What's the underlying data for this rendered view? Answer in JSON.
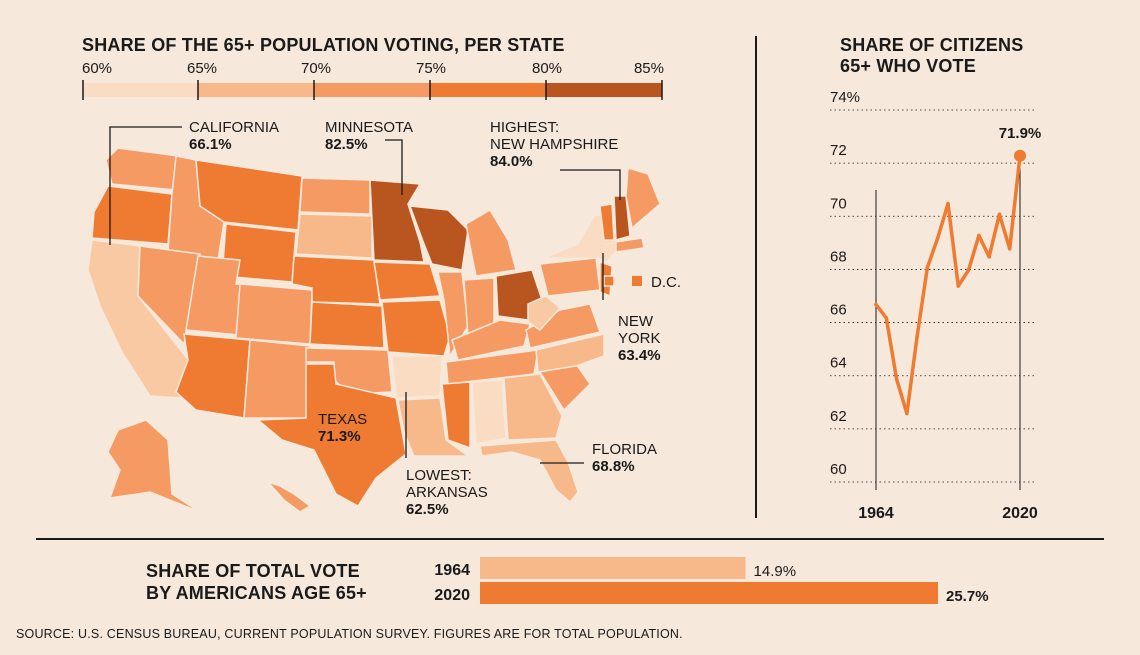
{
  "map": {
    "title": "SHARE OF THE 65+ POPULATION VOTING, PER STATE",
    "scale_labels": [
      "60%",
      "65%",
      "70%",
      "75%",
      "80%",
      "85%"
    ],
    "scale_colors": [
      "#f9dcc2",
      "#f7b88a",
      "#f49a62",
      "#ef7a31",
      "#b9551e"
    ],
    "annotations": {
      "california": {
        "name": "CALIFORNIA",
        "value": "66.1%"
      },
      "minnesota": {
        "name": "MINNESOTA",
        "value": "82.5%"
      },
      "new_hampshire": {
        "prefix": "HIGHEST:",
        "name": "NEW HAMPSHIRE",
        "value": "84.0%"
      },
      "dc": {
        "name": "D.C."
      },
      "new_york": {
        "name1": "NEW",
        "name2": "YORK",
        "value": "63.4%"
      },
      "texas": {
        "name": "TEXAS",
        "value": "71.3%"
      },
      "florida": {
        "name": "FLORIDA",
        "value": "68.8%"
      },
      "arkansas": {
        "prefix": "LOWEST:",
        "name": "ARKANSAS",
        "value": "62.5%"
      }
    }
  },
  "line": {
    "title_line1": "SHARE OF CITIZENS",
    "title_line2": "65+ WHO VOTE",
    "y_labels": [
      "74%",
      "72",
      "70",
      "68",
      "66",
      "64",
      "62",
      "60"
    ],
    "x_start": "1964",
    "x_end": "2020",
    "end_label": "71.9%"
  },
  "bars": {
    "title_line1": "SHARE OF TOTAL VOTE",
    "title_line2": "BY AMERICANS AGE 65+",
    "rows": [
      {
        "year": "1964",
        "value_label": "14.9%"
      },
      {
        "year": "2020",
        "value_label": "25.7%"
      }
    ]
  },
  "source": "SOURCE: U.S. CENSUS BUREAU, CURRENT POPULATION SURVEY. FIGURES ARE FOR TOTAL POPULATION.",
  "chart_data": [
    {
      "type": "line",
      "title": "SHARE OF CITIZENS 65+ WHO VOTE",
      "x": [
        1964,
        1968,
        1972,
        1976,
        1980,
        1984,
        1988,
        1992,
        1996,
        2000,
        2004,
        2008,
        2012,
        2016,
        2020
      ],
      "values": [
        66.3,
        65.8,
        63.5,
        62.2,
        65.1,
        67.7,
        68.8,
        70.1,
        67.0,
        67.6,
        68.9,
        68.1,
        69.7,
        68.4,
        71.9
      ],
      "xlabel": "",
      "ylabel": "",
      "ylim": [
        60,
        74
      ],
      "x_tick_labels": [
        "1964",
        "2020"
      ],
      "y_tick_labels": [
        "74%",
        "72",
        "70",
        "68",
        "66",
        "64",
        "62",
        "60"
      ],
      "end_label": "71.9%",
      "grid": true
    },
    {
      "type": "bar",
      "title": "SHARE OF TOTAL VOTE BY AMERICANS AGE 65+",
      "categories": [
        "1964",
        "2020"
      ],
      "values": [
        14.9,
        25.7
      ],
      "value_labels": [
        "14.9%",
        "25.7%"
      ],
      "colors": [
        "#f7b88a",
        "#ef7a31"
      ]
    },
    {
      "type": "choropleth",
      "title": "SHARE OF THE 65+ POPULATION VOTING, PER STATE",
      "scale": [
        60,
        65,
        70,
        75,
        80,
        85
      ],
      "labeled_states": [
        {
          "state": "California",
          "value": 66.1
        },
        {
          "state": "Minnesota",
          "value": 82.5
        },
        {
          "state": "New Hampshire",
          "value": 84.0,
          "note": "HIGHEST"
        },
        {
          "state": "New York",
          "value": 63.4
        },
        {
          "state": "Texas",
          "value": 71.3
        },
        {
          "state": "Florida",
          "value": 68.8
        },
        {
          "state": "Arkansas",
          "value": 62.5,
          "note": "LOWEST"
        }
      ]
    }
  ]
}
